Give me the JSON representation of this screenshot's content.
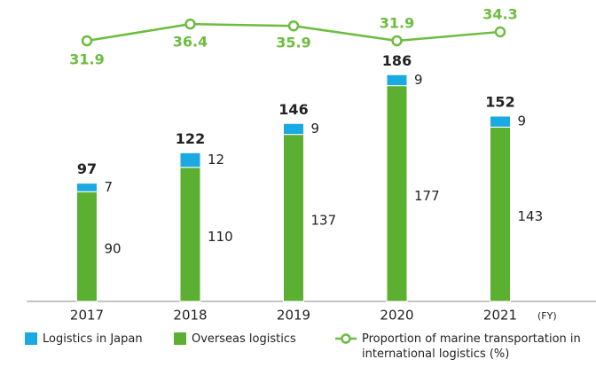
{
  "chart_data": {
    "type": "bar",
    "categories": [
      "2017",
      "2018",
      "2019",
      "2020",
      "2021"
    ],
    "x_unit": "(FY)",
    "stacked": true,
    "ylim": [
      0,
      200
    ],
    "y2lim": [
      20,
      40
    ],
    "series": [
      {
        "name": "Overseas logistics",
        "color": "#5cb031",
        "values": [
          90,
          110,
          137,
          177,
          143
        ]
      },
      {
        "name": "Logistics in Japan",
        "color": "#1aa9e3",
        "values": [
          7,
          12,
          9,
          9,
          9
        ]
      },
      {
        "name": "Proportion of marine transportation in international logistics (%)",
        "type": "line",
        "axis": "y2",
        "color": "#6cbd3e",
        "values": [
          31.9,
          36.4,
          35.9,
          31.9,
          34.3
        ]
      }
    ],
    "totals": [
      97,
      122,
      146,
      186,
      152
    ],
    "legend_order": [
      1,
      0,
      2
    ]
  }
}
